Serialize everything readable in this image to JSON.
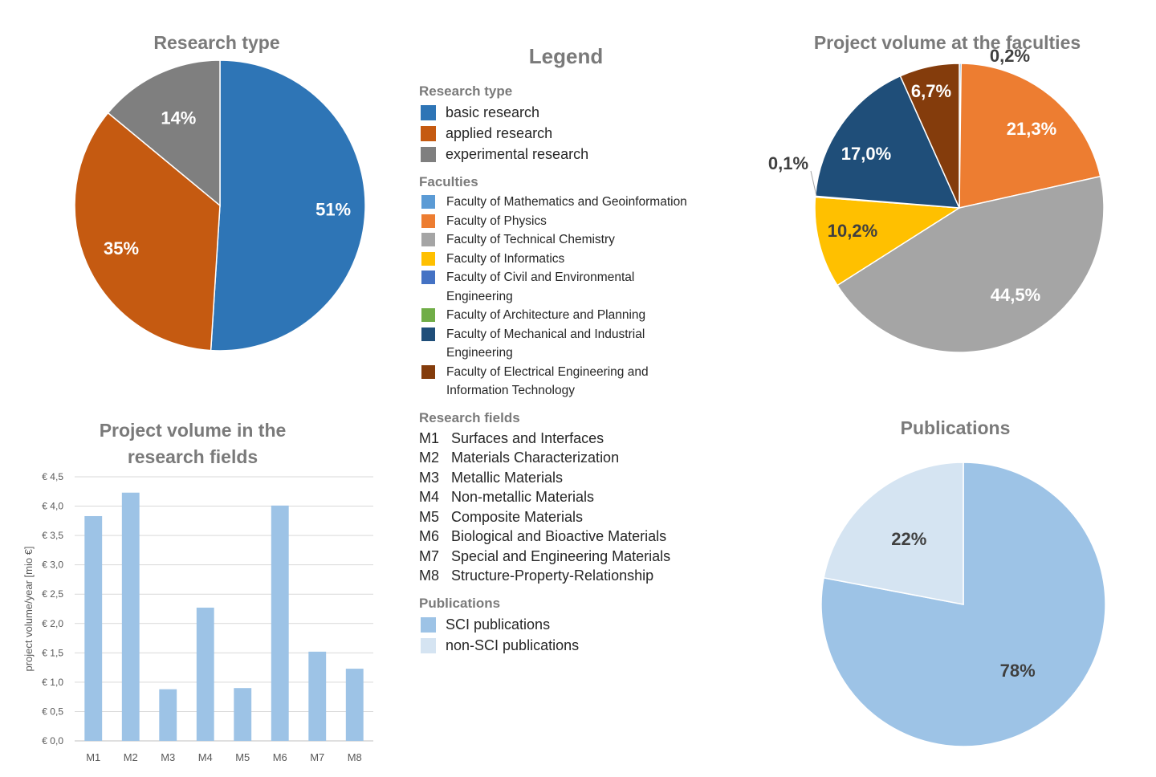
{
  "research_type_title": "Research type",
  "faculty_volume_title": "Project volume at the faculties",
  "fields_title": "Project volume in the research fields",
  "publications_title": "Publications",
  "legend": {
    "title": "Legend",
    "research_type": {
      "title": "Research type",
      "items": [
        {
          "label": "basic research",
          "color": "#2E75B6"
        },
        {
          "label": "applied research",
          "color": "#C55A11"
        },
        {
          "label": "experimental research",
          "color": "#7F7F7F"
        }
      ]
    },
    "faculties": {
      "title": "Faculties",
      "items": [
        {
          "label": "Faculty of Mathematics and Geoinformation",
          "color": "#5B9BD5"
        },
        {
          "label": "Faculty of Physics",
          "color": "#ED7D31"
        },
        {
          "label": "Faculty of Technical Chemistry",
          "color": "#A5A5A5"
        },
        {
          "label": "Faculty of Informatics",
          "color": "#FFC000"
        },
        {
          "label": "Faculty of Civil and Environmental Engineering",
          "color": "#4472C4"
        },
        {
          "label": "Faculty of Architecture and Planning",
          "color": "#70AD47"
        },
        {
          "label": "Faculty of Mechanical and Industrial Engineering",
          "color": "#1F4E79"
        },
        {
          "label": "Faculty of Electrical Engineering and Information Technology",
          "color": "#843C0C"
        }
      ]
    },
    "research_fields": {
      "title": "Research fields",
      "items": [
        {
          "code": "M1",
          "label": "Surfaces and Interfaces"
        },
        {
          "code": "M2",
          "label": "Materials Characterization"
        },
        {
          "code": "M3",
          "label": "Metallic Materials"
        },
        {
          "code": "M4",
          "label": "Non-metallic Materials"
        },
        {
          "code": "M5",
          "label": "Composite Materials"
        },
        {
          "code": "M6",
          "label": "Biological and Bioactive Materials"
        },
        {
          "code": "M7",
          "label": "Special and Engineering Materials"
        },
        {
          "code": "M8",
          "label": "Structure-Property-Relationship"
        }
      ]
    },
    "publications": {
      "title": "Publications",
      "items": [
        {
          "label": "SCI publications",
          "color": "#9DC3E6"
        },
        {
          "label": "non-SCI publications",
          "color": "#D5E4F2"
        }
      ]
    }
  },
  "chart_data": [
    {
      "type": "pie",
      "title": "Research type",
      "slices": [
        {
          "name": "basic research",
          "value": 51,
          "label": "51%",
          "color": "#2E75B6",
          "label_color": "#ffffff"
        },
        {
          "name": "applied research",
          "value": 35,
          "label": "35%",
          "color": "#C55A11",
          "label_color": "#ffffff"
        },
        {
          "name": "experimental research",
          "value": 14,
          "label": "14%",
          "color": "#7F7F7F",
          "label_color": "#ffffff"
        }
      ]
    },
    {
      "type": "pie",
      "title": "Project volume at the faculties",
      "slices": [
        {
          "name": "Faculty of Mathematics and Geoinformation",
          "value": 0.2,
          "label": "0,2%",
          "color": "#5B9BD5",
          "label_color": "#404040",
          "outside": true
        },
        {
          "name": "Faculty of Physics",
          "value": 21.3,
          "label": "21,3%",
          "color": "#ED7D31",
          "label_color": "#ffffff"
        },
        {
          "name": "Faculty of Technical Chemistry",
          "value": 44.5,
          "label": "44,5%",
          "color": "#A5A5A5",
          "label_color": "#ffffff"
        },
        {
          "name": "Faculty of Informatics",
          "value": 10.2,
          "label": "10,2%",
          "color": "#FFC000",
          "label_color": "#404040"
        },
        {
          "name": "Faculty of Civil and Environmental Engineering",
          "value": 0.1,
          "label": "0,1%",
          "color": "#4472C4",
          "label_color": "#404040",
          "outside": true
        },
        {
          "name": "Faculty of Mechanical and Industrial Engineering",
          "value": 17.0,
          "label": "17,0%",
          "color": "#1F4E79",
          "label_color": "#ffffff"
        },
        {
          "name": "Faculty of Electrical Engineering and Information Technology",
          "value": 6.7,
          "label": "6,7%",
          "color": "#843C0C",
          "label_color": "#ffffff"
        }
      ]
    },
    {
      "type": "bar",
      "title": "Project volume in the research fields",
      "categories": [
        "M1",
        "M2",
        "M3",
        "M4",
        "M5",
        "M6",
        "M7",
        "M8"
      ],
      "values": [
        3.83,
        4.23,
        0.88,
        2.27,
        0.9,
        4.01,
        1.52,
        1.23
      ],
      "ylabel": "project volume/year [mio €]",
      "ylim": [
        0,
        4.5
      ],
      "yticks": [
        "€ 0,0",
        "€ 0,5",
        "€ 1,0",
        "€ 1,5",
        "€ 2,0",
        "€ 2,5",
        "€ 3,0",
        "€ 3,5",
        "€ 4,0",
        "€ 4,5"
      ],
      "bar_color": "#9DC3E6",
      "grid": true
    },
    {
      "type": "pie",
      "title": "Publications",
      "slices": [
        {
          "name": "SCI publications",
          "value": 78,
          "label": "78%",
          "color": "#9DC3E6",
          "label_color": "#404040"
        },
        {
          "name": "non-SCI publications",
          "value": 22,
          "label": "22%",
          "color": "#D5E4F2",
          "label_color": "#404040"
        }
      ]
    }
  ]
}
